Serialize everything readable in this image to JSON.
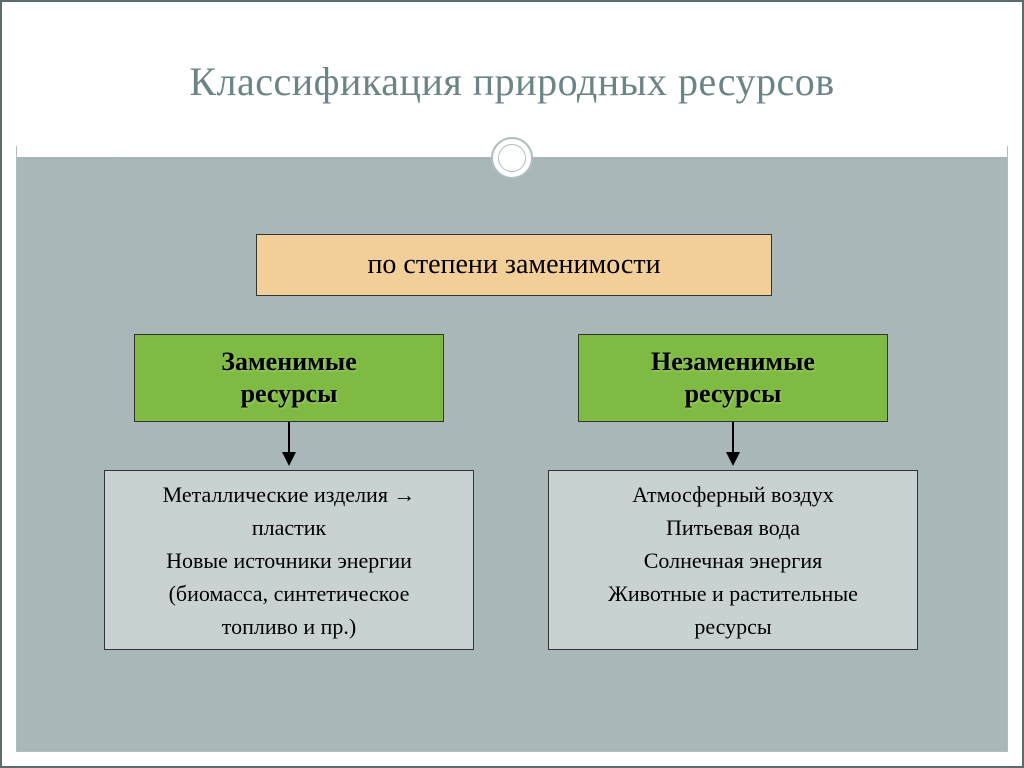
{
  "title": "Классификация природных ресурсов",
  "root": {
    "label": "по степени заменимости"
  },
  "categories": {
    "left": {
      "label": "Заменимые\nресурсы"
    },
    "right": {
      "label": "Незаменимые\nресурсы"
    }
  },
  "leaves": {
    "left": {
      "text": "Металлические изделия →\nпластик\nНовые источники энергии\n(биомасса, синтетическое\nтопливо и пр.)"
    },
    "right": {
      "text": "Атмосферный воздух\nПитьевая вода\nСолнечная энергия\nЖивотные и растительные\nресурсы"
    }
  },
  "colors": {
    "frame_outer": "#5a6c6e",
    "frame_inner": "#b0bcbf",
    "title_text": "#6b8587",
    "content_bg": "#aab7b9",
    "root_bg": "#f2ce99",
    "category_bg": "#7fbb42",
    "leaf_bg": "#c9d2d3",
    "border": "#333333",
    "arrow": "#000000"
  },
  "layout": {
    "slide_width": 1024,
    "slide_height": 768,
    "title_fontsize": 40,
    "root_fontsize": 28,
    "category_fontsize": 26,
    "leaf_fontsize": 22
  },
  "diagram_type": "tree"
}
